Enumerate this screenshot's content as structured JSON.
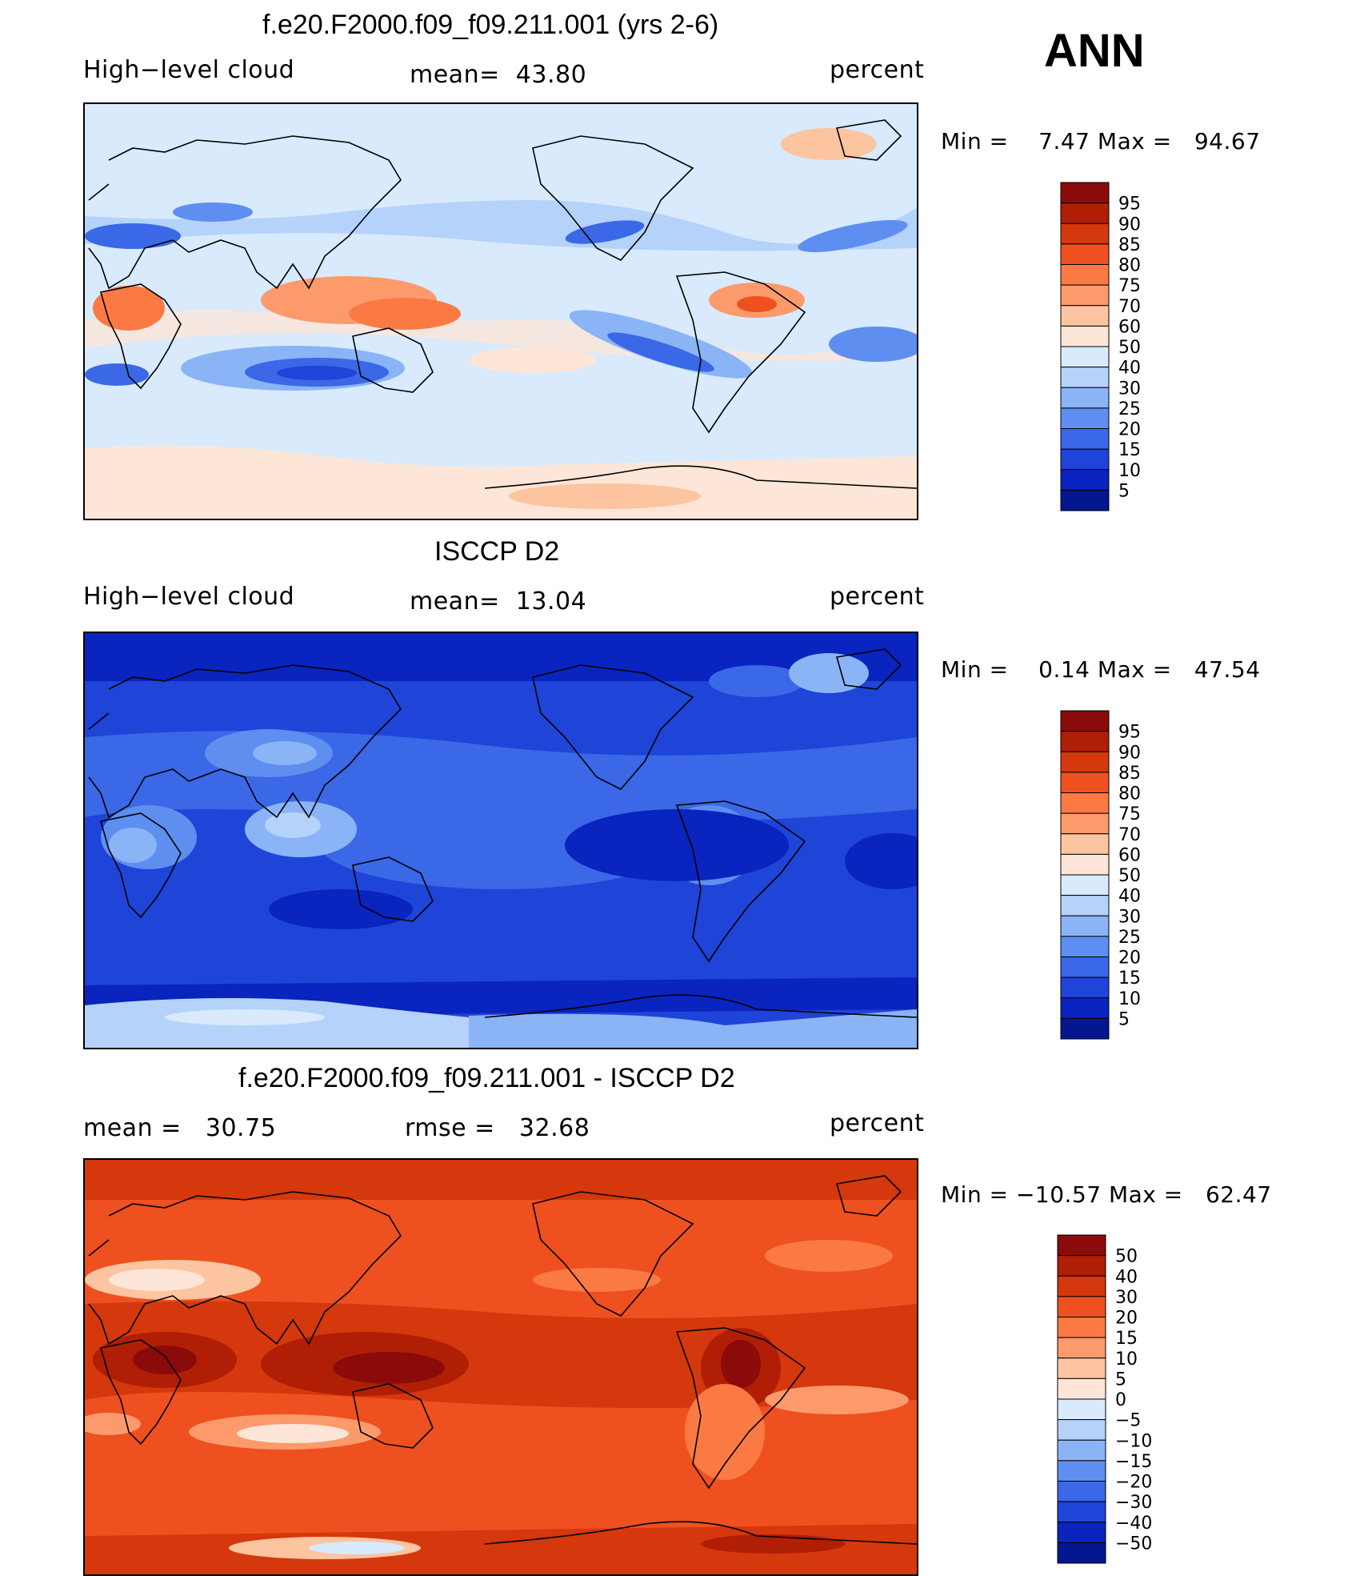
{
  "season": "ANN",
  "panels": [
    {
      "title": "f.e20.F2000.f09_f09.211.001 (yrs 2-6)",
      "left_label": "High−level cloud",
      "center_label": "mean=",
      "center_value": "43.80",
      "units": "percent",
      "min_label": "Min  =",
      "min_value": "7.47",
      "max_label": "Max  =",
      "max_value": "94.67",
      "colorbar_labels": [
        "95",
        "90",
        "85",
        "80",
        "75",
        "70",
        "60",
        "50",
        "40",
        "30",
        "25",
        "20",
        "15",
        "10",
        "5"
      ],
      "colorbar_colors": [
        "#8b0a0a",
        "#b01e06",
        "#d4380c",
        "#ee5020",
        "#fb7a44",
        "#fc9a6c",
        "#fdc4a0",
        "#fde6d8",
        "#d8eafc",
        "#b5d2fa",
        "#8ab4f6",
        "#5e8ef0",
        "#3a68e6",
        "#1f44d8",
        "#0a24c0",
        "#041690"
      ]
    },
    {
      "title": "ISCCP D2",
      "left_label": "High−level cloud",
      "center_label": "mean=",
      "center_value": "13.04",
      "units": "percent",
      "min_label": "Min  =",
      "min_value": "0.14",
      "max_label": "Max  =",
      "max_value": "47.54",
      "colorbar_labels": [
        "95",
        "90",
        "85",
        "80",
        "75",
        "70",
        "60",
        "50",
        "40",
        "30",
        "25",
        "20",
        "15",
        "10",
        "5"
      ],
      "colorbar_colors": [
        "#8b0a0a",
        "#b01e06",
        "#d4380c",
        "#ee5020",
        "#fb7a44",
        "#fc9a6c",
        "#fdc4a0",
        "#fde6d8",
        "#d8eafc",
        "#b5d2fa",
        "#8ab4f6",
        "#5e8ef0",
        "#3a68e6",
        "#1f44d8",
        "#0a24c0",
        "#041690"
      ]
    },
    {
      "title": "f.e20.F2000.f09_f09.211.001 - ISCCP D2",
      "left_label": "mean  =",
      "left_value": "30.75",
      "center_label": "rmse  =",
      "center_value": "32.68",
      "units": "percent",
      "min_label": "Min  =",
      "min_value": "−10.57",
      "max_label": "Max  =",
      "max_value": "62.47",
      "colorbar_labels": [
        "50",
        "40",
        "30",
        "20",
        "15",
        "10",
        "5",
        "0",
        "−5",
        "−10",
        "−15",
        "−20",
        "−30",
        "−40",
        "−50"
      ],
      "colorbar_colors": [
        "#8b0a0a",
        "#b01e06",
        "#d4380c",
        "#ee5020",
        "#fb7a44",
        "#fc9a6c",
        "#fdc4a0",
        "#fde6d8",
        "#d8eafc",
        "#b5d2fa",
        "#8ab4f6",
        "#5e8ef0",
        "#3a68e6",
        "#1f44d8",
        "#0a24c0",
        "#041690"
      ]
    }
  ]
}
